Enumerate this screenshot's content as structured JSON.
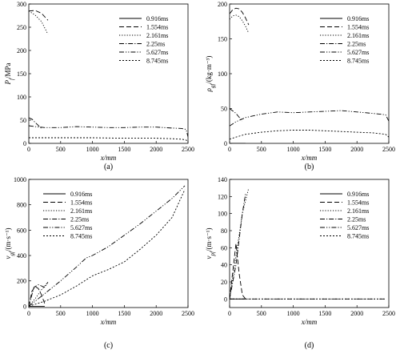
{
  "figure": {
    "legend_labels": [
      "0.916ms",
      "1.554ms",
      "2.161ms",
      "2.25ms",
      "5.627ms",
      "8.745ms"
    ],
    "line_styles": [
      "solid",
      "dash",
      "dot",
      "dashdot",
      "dashdotdot",
      "shortdot"
    ],
    "line_color": "#000000"
  },
  "chart_data": [
    {
      "type": "line",
      "panel_label": "(a)",
      "xlabel": "x/mm",
      "ylabel": "P_f/MPa",
      "xlim": [
        0,
        2500
      ],
      "ylim": [
        0,
        300
      ],
      "xticks": [
        0,
        500,
        1000,
        1500,
        2000,
        2500
      ],
      "yticks": [
        0,
        50,
        100,
        150,
        200,
        250,
        300
      ],
      "legend_position": "top-right",
      "series": [
        {
          "name": "0.916ms",
          "style": "solid",
          "x": [],
          "y": []
        },
        {
          "name": "1.554ms",
          "style": "dash",
          "x": [
            0,
            100,
            200,
            300
          ],
          "y": [
            285,
            286,
            280,
            265
          ]
        },
        {
          "name": "2.161ms",
          "style": "dot",
          "x": [
            0,
            100,
            200,
            300
          ],
          "y": [
            285,
            276,
            262,
            235
          ]
        },
        {
          "name": "2.25ms",
          "style": "dashdot",
          "x": [
            0,
            50,
            100,
            200
          ],
          "y": [
            55,
            52,
            45,
            32
          ]
        },
        {
          "name": "5.627ms",
          "style": "dashdotdot",
          "x": [
            0,
            100,
            250,
            500,
            750,
            1000,
            1250,
            1500,
            1750,
            2000,
            2250,
            2400,
            2470,
            2500
          ],
          "y": [
            38,
            36,
            34,
            34,
            36,
            35,
            34,
            34,
            35,
            35,
            33,
            32,
            30,
            14
          ]
        },
        {
          "name": "8.745ms",
          "style": "shortdot",
          "x": [
            0,
            250,
            500,
            1000,
            1500,
            2000,
            2250,
            2400,
            2470,
            2500
          ],
          "y": [
            12,
            12,
            12,
            12,
            11,
            11,
            10,
            9,
            7,
            4
          ]
        }
      ]
    },
    {
      "type": "line",
      "panel_label": "(b)",
      "xlabel": "x/mm",
      "ylabel": "ρ_gf/(kg·m⁻³)",
      "xlim": [
        0,
        2500
      ],
      "ylim": [
        0,
        200
      ],
      "xticks": [
        0,
        500,
        1000,
        1500,
        2000,
        2500
      ],
      "yticks": [
        0,
        50,
        100,
        150,
        200
      ],
      "legend_position": "top-right",
      "series": [
        {
          "name": "0.916ms",
          "style": "solid",
          "x": [
            0,
            250
          ],
          "y": [
            0,
            0
          ]
        },
        {
          "name": "1.554ms",
          "style": "dash",
          "x": [
            0,
            50,
            100,
            150,
            200,
            250,
            300
          ],
          "y": [
            186,
            192,
            194,
            193,
            188,
            180,
            170
          ]
        },
        {
          "name": "2.161ms",
          "style": "dot",
          "x": [
            0,
            50,
            100,
            150,
            200,
            250,
            300
          ],
          "y": [
            178,
            183,
            184,
            182,
            176,
            168,
            158
          ]
        },
        {
          "name": "2.25ms",
          "style": "dashdot",
          "x": [
            0,
            100,
            200
          ],
          "y": [
            50,
            43,
            32
          ]
        },
        {
          "name": "5.627ms",
          "style": "dashdotdot",
          "x": [
            0,
            100,
            250,
            500,
            750,
            1000,
            1250,
            1500,
            1750,
            2000,
            2250,
            2450,
            2500
          ],
          "y": [
            25,
            31,
            37,
            42,
            45,
            44,
            45,
            46,
            47,
            45,
            43,
            41,
            32
          ]
        },
        {
          "name": "8.745ms",
          "style": "shortdot",
          "x": [
            0,
            100,
            250,
            500,
            750,
            1000,
            1250,
            1500,
            1750,
            2000,
            2250,
            2450,
            2500
          ],
          "y": [
            6,
            9,
            13,
            16,
            18,
            19,
            19,
            18,
            17,
            16,
            15,
            13,
            9
          ]
        }
      ]
    },
    {
      "type": "line",
      "panel_label": "(c)",
      "xlabel": "x/mm",
      "ylabel": "v_gf/(m·s⁻¹)",
      "xlim": [
        0,
        2500
      ],
      "ylim": [
        -10,
        1000
      ],
      "xticks": [
        0,
        500,
        1000,
        1500,
        2000,
        2500
      ],
      "yticks": [
        0,
        200,
        400,
        600,
        800,
        1000
      ],
      "legend_position": "top-left",
      "series": [
        {
          "name": "0.916ms",
          "style": "solid",
          "x": [
            0,
            250
          ],
          "y": [
            0,
            0
          ]
        },
        {
          "name": "1.554ms",
          "style": "dash",
          "x": [
            0,
            50,
            100,
            150,
            200,
            250
          ],
          "y": [
            0,
            120,
            155,
            140,
            90,
            20
          ]
        },
        {
          "name": "2.161ms",
          "style": "dot",
          "x": [
            0,
            100,
            200,
            300
          ],
          "y": [
            0,
            60,
            130,
            190
          ]
        },
        {
          "name": "2.25ms",
          "style": "dashdot",
          "x": [
            0,
            80,
            150,
            250,
            300
          ],
          "y": [
            0,
            150,
            170,
            150,
            190
          ]
        },
        {
          "name": "5.627ms",
          "style": "dashdotdot",
          "x": [
            0,
            250,
            500,
            750,
            900,
            1000,
            1250,
            1500,
            1750,
            2000,
            2250,
            2450
          ],
          "y": [
            0,
            100,
            200,
            310,
            380,
            400,
            470,
            560,
            650,
            750,
            850,
            950
          ]
        },
        {
          "name": "8.745ms",
          "style": "shortdot",
          "x": [
            0,
            250,
            500,
            750,
            1000,
            1250,
            1500,
            1750,
            2000,
            2250,
            2450
          ],
          "y": [
            0,
            40,
            90,
            160,
            240,
            290,
            350,
            450,
            560,
            700,
            920
          ]
        }
      ]
    },
    {
      "type": "line",
      "panel_label": "(d)",
      "xlabel": "x/mm",
      "ylabel": "v_pf/(m·s⁻¹)",
      "xlim": [
        0,
        2500
      ],
      "ylim": [
        -10,
        140
      ],
      "xticks": [
        0,
        500,
        1000,
        1500,
        2000,
        2500
      ],
      "yticks": [
        0,
        20,
        40,
        60,
        80,
        100,
        120,
        140
      ],
      "legend_position": "top-right",
      "series": [
        {
          "name": "0.916ms",
          "style": "solid",
          "x": [
            0,
            250
          ],
          "y": [
            0,
            0
          ]
        },
        {
          "name": "1.554ms",
          "style": "dash",
          "x": [
            0,
            100,
            150,
            200,
            250
          ],
          "y": [
            0,
            65,
            30,
            5,
            0
          ]
        },
        {
          "name": "2.161ms",
          "style": "dot",
          "x": [
            0,
            100,
            200,
            300
          ],
          "y": [
            0,
            50,
            100,
            130
          ]
        },
        {
          "name": "2.25ms",
          "style": "dashdot",
          "x": [
            0,
            100,
            200,
            250
          ],
          "y": [
            0,
            40,
            100,
            123
          ]
        },
        {
          "name": "5.627ms",
          "style": "dashdotdot",
          "x": [
            0,
            500,
            1000,
            1500,
            2000,
            2450
          ],
          "y": [
            0,
            0,
            0,
            0,
            0,
            0
          ]
        },
        {
          "name": "8.745ms",
          "style": "shortdot",
          "x": [
            0,
            500,
            1000,
            1500,
            2000,
            2450
          ],
          "y": [
            0,
            0,
            0,
            0,
            0,
            0
          ]
        }
      ]
    }
  ]
}
